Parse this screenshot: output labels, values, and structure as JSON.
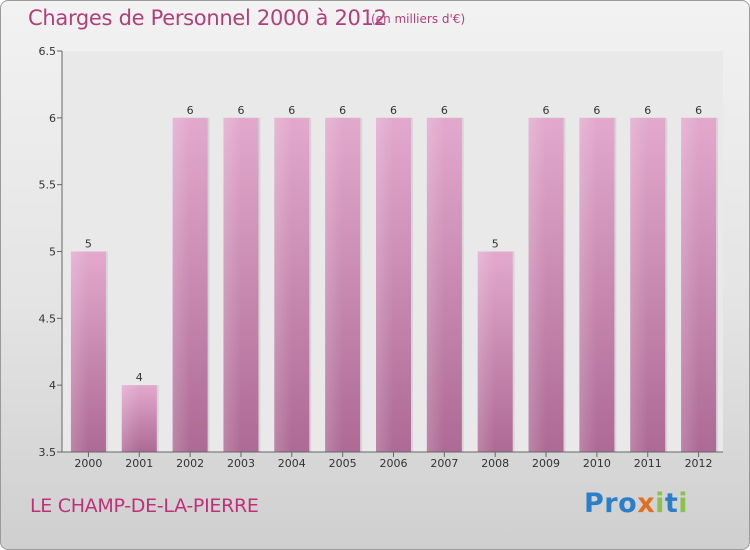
{
  "title": "Charges de Personnel 2000 à 2012",
  "subtitle": "(en milliers d'€)",
  "commune": "LE CHAMP-DE-LA-PIERRE",
  "logo": {
    "text": "Proxiti",
    "letters": [
      "P",
      "r",
      "o",
      "x",
      "i",
      "t",
      "i"
    ],
    "colors": [
      "#2a7fc8",
      "#2a7fc8",
      "#2a7fc8",
      "#e07020",
      "#8bc34a",
      "#2a7fc8",
      "#8bc34a"
    ]
  },
  "colors": {
    "bar": "#d9a3c6",
    "bar_dark": "#b46e9a",
    "title": "#b0407a"
  },
  "chart_data": {
    "type": "bar",
    "categories": [
      "2000",
      "2001",
      "2002",
      "2003",
      "2004",
      "2005",
      "2006",
      "2007",
      "2008",
      "2009",
      "2010",
      "2011",
      "2012"
    ],
    "values": [
      5,
      4,
      6,
      6,
      6,
      6,
      6,
      6,
      5,
      6,
      6,
      6,
      6
    ],
    "data_labels": [
      "5",
      "4",
      "6",
      "6",
      "6",
      "6",
      "6",
      "6",
      "5",
      "6",
      "6",
      "6",
      "6"
    ],
    "ylim": [
      3.5,
      6.5
    ],
    "yticks": [
      "3.5",
      "4",
      "4.5",
      "5",
      "5.5",
      "6",
      "6.5"
    ],
    "grid": false
  }
}
